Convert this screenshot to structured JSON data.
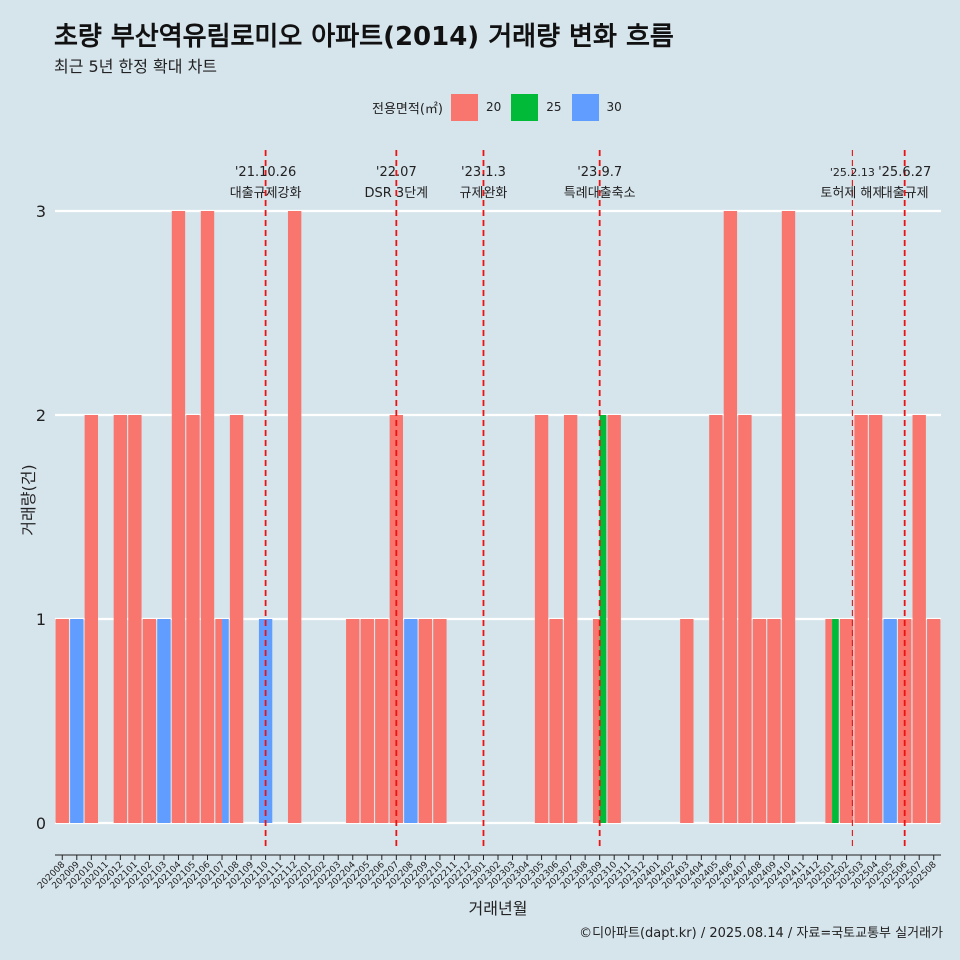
{
  "title": "초량 부산역유림로미오 아파트(2014) 거래량 변화 흐름",
  "subtitle": "최근 5년 한정 확대 차트",
  "caption": "©디아파트(dapt.kr) / 2025.08.14 / 자료=국토교통부 실거래가",
  "legend": {
    "title": "전용면적(㎡)",
    "items": [
      {
        "name": "20",
        "color": "#f8766d"
      },
      {
        "name": "25",
        "color": "#00ba38"
      },
      {
        "name": "30",
        "color": "#619cff"
      }
    ]
  },
  "chart_data": {
    "type": "bar",
    "stacked": false,
    "xlabel": "거래년월",
    "ylabel": "거래량(건)",
    "ylim": [
      0,
      3
    ],
    "yticks": [
      0,
      1,
      2,
      3
    ],
    "grid": true,
    "legend_position": "top",
    "categories": [
      "202008",
      "202009",
      "202010",
      "202011",
      "202012",
      "202101",
      "202102",
      "202103",
      "202104",
      "202105",
      "202106",
      "202107",
      "202108",
      "202109",
      "202110",
      "202111",
      "202112",
      "202201",
      "202202",
      "202203",
      "202204",
      "202205",
      "202206",
      "202207",
      "202208",
      "202209",
      "202210",
      "202211",
      "202212",
      "202301",
      "202302",
      "202303",
      "202304",
      "202305",
      "202306",
      "202307",
      "202308",
      "202309",
      "202310",
      "202311",
      "202312",
      "202401",
      "202402",
      "202403",
      "202404",
      "202405",
      "202406",
      "202407",
      "202408",
      "202409",
      "202410",
      "202411",
      "202412",
      "202501",
      "202502",
      "202503",
      "202504",
      "202505",
      "202506",
      "202507",
      "202508"
    ],
    "series": [
      {
        "name": "20",
        "color": "#f8766d",
        "values": [
          1,
          0,
          2,
          0,
          2,
          2,
          1,
          0,
          3,
          2,
          3,
          1,
          2,
          0,
          0,
          0,
          3,
          0,
          0,
          0,
          1,
          1,
          1,
          2,
          0,
          1,
          1,
          0,
          0,
          0,
          0,
          0,
          0,
          2,
          1,
          2,
          0,
          1,
          2,
          0,
          0,
          0,
          0,
          1,
          0,
          2,
          3,
          2,
          1,
          1,
          3,
          0,
          0,
          1,
          1,
          2,
          2,
          0,
          1,
          2,
          1
        ]
      },
      {
        "name": "25",
        "color": "#00ba38",
        "values": [
          0,
          0,
          0,
          0,
          0,
          0,
          0,
          0,
          0,
          0,
          0,
          0,
          0,
          0,
          0,
          0,
          0,
          0,
          0,
          0,
          0,
          0,
          0,
          0,
          0,
          0,
          0,
          0,
          0,
          0,
          0,
          0,
          0,
          0,
          0,
          0,
          0,
          2,
          0,
          0,
          0,
          0,
          0,
          0,
          0,
          0,
          0,
          0,
          0,
          0,
          0,
          0,
          0,
          1,
          0,
          0,
          0,
          0,
          0,
          0,
          0
        ]
      },
      {
        "name": "30",
        "color": "#619cff",
        "values": [
          0,
          1,
          0,
          0,
          0,
          0,
          0,
          1,
          0,
          0,
          0,
          1,
          0,
          0,
          1,
          0,
          0,
          0,
          0,
          0,
          0,
          0,
          0,
          0,
          1,
          0,
          0,
          0,
          0,
          0,
          0,
          0,
          0,
          0,
          0,
          0,
          0,
          0,
          0,
          0,
          0,
          0,
          0,
          0,
          0,
          0,
          0,
          0,
          0,
          0,
          0,
          0,
          0,
          0,
          0,
          0,
          0,
          1,
          0,
          0,
          0
        ]
      }
    ],
    "annotations": [
      {
        "month": "202110",
        "offset": 0.0,
        "date": "'21.10.26",
        "label": "대출규제강화",
        "style": "thick"
      },
      {
        "month": "202207",
        "offset": 0.0,
        "date": "'22.07",
        "label": "DSR 3단계",
        "style": "thick"
      },
      {
        "month": "202301",
        "offset": 0.0,
        "date": "'23.1.3",
        "label": "규제완화",
        "style": "thick"
      },
      {
        "month": "202309",
        "offset": 0.0,
        "date": "'23.9.7",
        "label": "특례대출축소",
        "style": "thick"
      },
      {
        "month": "202502",
        "offset": 0.4,
        "date": "'25.2.13",
        "label": "토허제 해제",
        "style": "thin"
      },
      {
        "month": "202506",
        "offset": 0.0,
        "date": "'25.6.27",
        "label": "대출규제",
        "style": "thick"
      }
    ]
  }
}
